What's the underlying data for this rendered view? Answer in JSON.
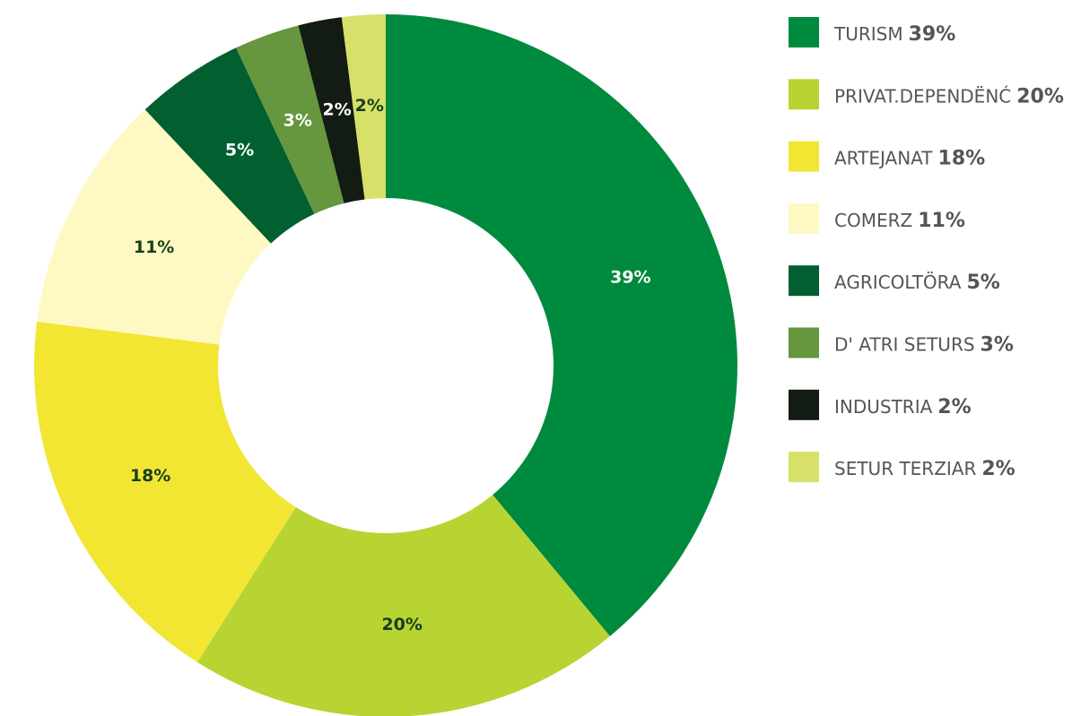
{
  "chart_data": {
    "type": "donut",
    "categories": [
      "TURISM",
      "PRIVAT.DEPENDËNĆ",
      "ARTEJANAT",
      "COMERZ",
      "AGRICOLTÖRA",
      "D' ATRI SETURS",
      "INDUSTRIA",
      "SETUR TERZIAR"
    ],
    "values": [
      39,
      20,
      18,
      11,
      5,
      3,
      2,
      2
    ],
    "value_labels": [
      "39%",
      "20%",
      "18%",
      "11%",
      "5%",
      "3%",
      "2%",
      "2%"
    ],
    "colors": [
      "#008a3e",
      "#b8d433",
      "#f2e633",
      "#fef9c3",
      "#015f30",
      "#66963d",
      "#121c12",
      "#d7e068"
    ],
    "legend": "right"
  }
}
